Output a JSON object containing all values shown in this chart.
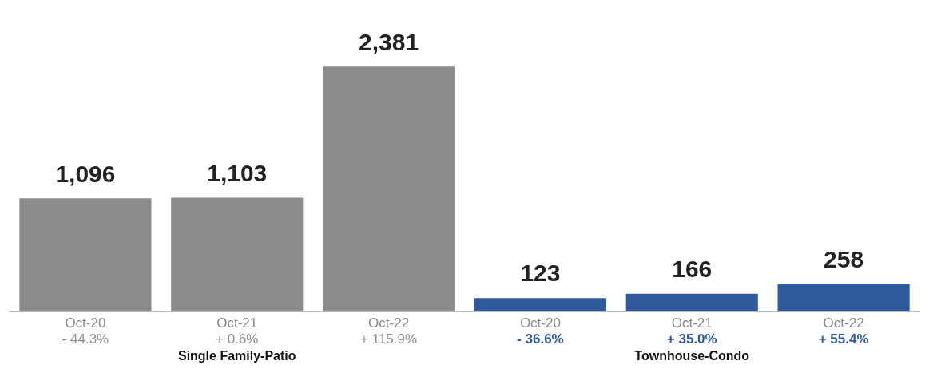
{
  "chart_data": {
    "type": "bar",
    "categories": [
      "Oct-20\n- 44.3%",
      "Oct-21\n+ 0.6%",
      "Oct-22\n+ 115.9%",
      "Oct-20\n- 36.6%",
      "Oct-21\n+ 35.0%",
      "Oct-22\n+ 55.4%"
    ],
    "series": [
      {
        "color": "#8c8c8c",
        "values": [
          1096,
          1103,
          2381,
          null,
          null,
          null
        ],
        "value_labels": [
          "1,096",
          "1,103",
          "2,381",
          null,
          null,
          null
        ]
      },
      {
        "color": "#2f5b9e",
        "values": [
          null,
          null,
          null,
          123,
          166,
          258
        ],
        "value_labels": [
          null,
          null,
          null,
          "123",
          "166",
          "258"
        ]
      }
    ],
    "annotations": [
      "Single Family-Patio",
      "Townhouse-Condo"
    ],
    "legend": false,
    "grid": false
  }
}
